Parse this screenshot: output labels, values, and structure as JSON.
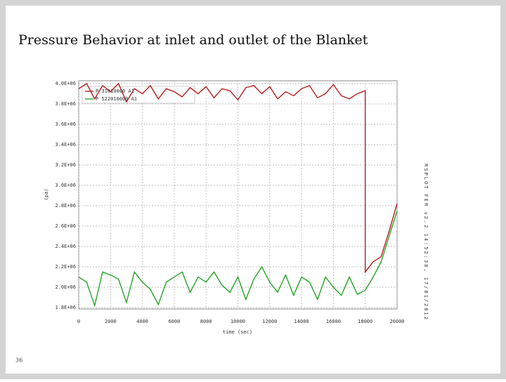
{
  "chart_data": {
    "type": "line",
    "title": "Pressure Behavior at inlet and outlet of the Blanket",
    "page_number": "36",
    "xlabel": "time (sec)",
    "ylabel": "(pa)",
    "side_note": "RSPLOT FER v2.2 14:52:38, 17/01/2012",
    "xlim": [
      0,
      20000
    ],
    "xticks": [
      0,
      2000,
      4000,
      6000,
      8000,
      10000,
      12000,
      14000,
      16000,
      18000,
      20000
    ],
    "ylim": [
      1800000,
      4000000
    ],
    "yticks": [
      {
        "value": 1800000,
        "label": "1.8E+06"
      },
      {
        "value": 2000000,
        "label": "2.0E+06"
      },
      {
        "value": 2200000,
        "label": "2.2E+06"
      },
      {
        "value": 2400000,
        "label": "2.4E+06"
      },
      {
        "value": 2600000,
        "label": "2.6E+06"
      },
      {
        "value": 2800000,
        "label": "2.8E+06"
      },
      {
        "value": 3000000,
        "label": "3.0E+06"
      },
      {
        "value": 3200000,
        "label": "3.2E+06"
      },
      {
        "value": 3400000,
        "label": "3.4E+06"
      },
      {
        "value": 3600000,
        "label": "3.6E+06"
      },
      {
        "value": 3800000,
        "label": "3.8E+06"
      },
      {
        "value": 4000000,
        "label": "4.0E+06"
      }
    ],
    "grid": true,
    "series": [
      {
        "name": "P 31010000 A1",
        "color": "#b01010",
        "x": [
          0,
          500,
          1000,
          1500,
          2000,
          2500,
          3000,
          3500,
          4000,
          4500,
          5000,
          5500,
          6000,
          6500,
          7000,
          7500,
          8000,
          8500,
          9000,
          9500,
          10000,
          10500,
          11000,
          11500,
          12000,
          12500,
          13000,
          13500,
          14000,
          14500,
          15000,
          15500,
          16000,
          16500,
          17000,
          17500,
          18000,
          18000,
          18500,
          19000,
          19500,
          20000
        ],
        "values": [
          3950000,
          4000000,
          3850000,
          3980000,
          3920000,
          4000000,
          3820000,
          3950000,
          3900000,
          3980000,
          3850000,
          3950000,
          3920000,
          3870000,
          3960000,
          3900000,
          3970000,
          3860000,
          3950000,
          3930000,
          3840000,
          3960000,
          3980000,
          3900000,
          3970000,
          3850000,
          3920000,
          3880000,
          3950000,
          3980000,
          3860000,
          3900000,
          3990000,
          3880000,
          3850000,
          3900000,
          3930000,
          2150000,
          2250000,
          2300000,
          2550000,
          2820000
        ]
      },
      {
        "name": "P 522010000 A1",
        "color": "#18a018",
        "x": [
          0,
          500,
          1000,
          1500,
          2000,
          2500,
          3000,
          3500,
          4000,
          4500,
          5000,
          5500,
          6000,
          6500,
          7000,
          7500,
          8000,
          8500,
          9000,
          9500,
          10000,
          10500,
          11000,
          11500,
          12000,
          12500,
          13000,
          13500,
          14000,
          14500,
          15000,
          15500,
          16000,
          16500,
          17000,
          17500,
          18000,
          18500,
          19000,
          19500,
          20000
        ],
        "values": [
          2100000,
          2050000,
          1820000,
          2150000,
          2120000,
          2080000,
          1850000,
          2150000,
          2050000,
          1980000,
          1830000,
          2050000,
          2100000,
          2150000,
          1950000,
          2100000,
          2050000,
          2150000,
          2020000,
          1950000,
          2100000,
          1880000,
          2080000,
          2200000,
          2050000,
          1950000,
          2120000,
          1920000,
          2100000,
          2050000,
          1880000,
          2100000,
          2000000,
          1920000,
          2100000,
          1930000,
          1970000,
          2100000,
          2250000,
          2500000,
          2750000
        ]
      }
    ]
  }
}
